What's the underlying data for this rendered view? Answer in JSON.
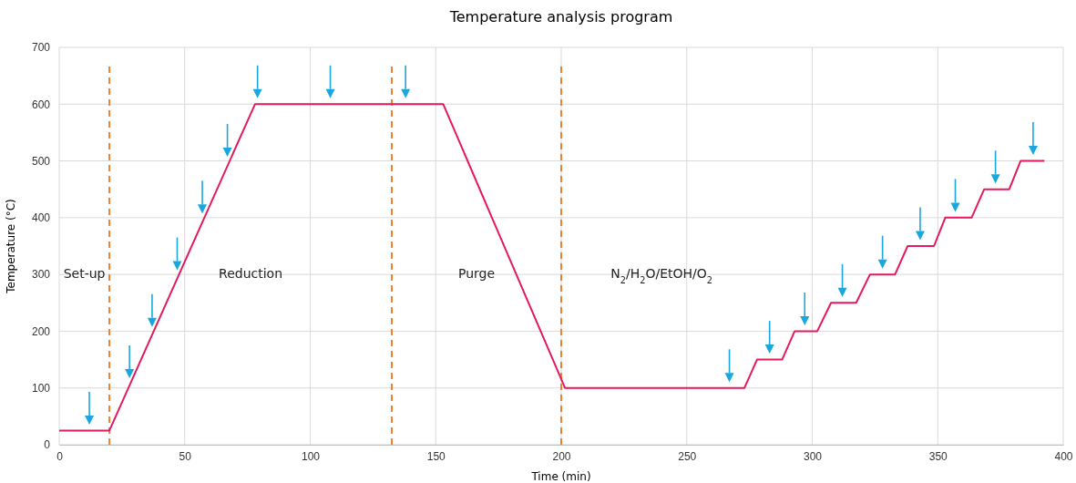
{
  "chart_data": {
    "type": "line",
    "title": "Temperature analysis program",
    "xlabel": "Time (min)",
    "ylabel": "Temperature (°C)",
    "xlim": [
      0,
      400
    ],
    "xticks": [
      0,
      50,
      100,
      150,
      200,
      250,
      300,
      350,
      400
    ],
    "ylim": [
      0,
      700
    ],
    "yticks": [
      0,
      100,
      200,
      300,
      400,
      500,
      600,
      700
    ],
    "grid": true,
    "series": [
      {
        "color": "#e5195e",
        "x": [
          0,
          20,
          78,
          153,
          201.5,
          273,
          278,
          288,
          293,
          302,
          307.5,
          317.5,
          323,
          333,
          338,
          348.5,
          353,
          363.5,
          368.5,
          378.5,
          383,
          392.5
        ],
        "values": [
          25,
          25,
          600,
          600,
          100,
          100,
          150,
          150,
          200,
          200,
          250,
          250,
          300,
          300,
          350,
          350,
          400,
          400,
          450,
          450,
          500,
          500
        ]
      },
      {
        "type": "scatter",
        "color": "#1aa6df",
        "x": [
          12,
          28,
          37,
          47,
          57,
          67,
          79,
          108,
          138,
          267,
          283,
          297,
          312,
          328,
          343,
          357,
          373,
          388
        ],
        "values": [
          45,
          127,
          217,
          317,
          417,
          517,
          620,
          620,
          620,
          120,
          170,
          220,
          270,
          320,
          370,
          420,
          470,
          520
        ],
        "marker": "triangle"
      }
    ],
    "ref_lines": [
      {
        "axis": "x",
        "value": 20,
        "color": "#f0802a",
        "line_style": "dashed"
      },
      {
        "axis": "x",
        "value": 132.5,
        "color": "#f0802a",
        "line_style": "dashed"
      },
      {
        "axis": "x",
        "value": 200,
        "color": "#f0802a",
        "line_style": "dashed"
      }
    ],
    "annotations": [
      "Set-up",
      "Reduction",
      "Purge",
      "N$_{2}$/H$_{2}$O/EtOH/O$_{2}$"
    ]
  }
}
